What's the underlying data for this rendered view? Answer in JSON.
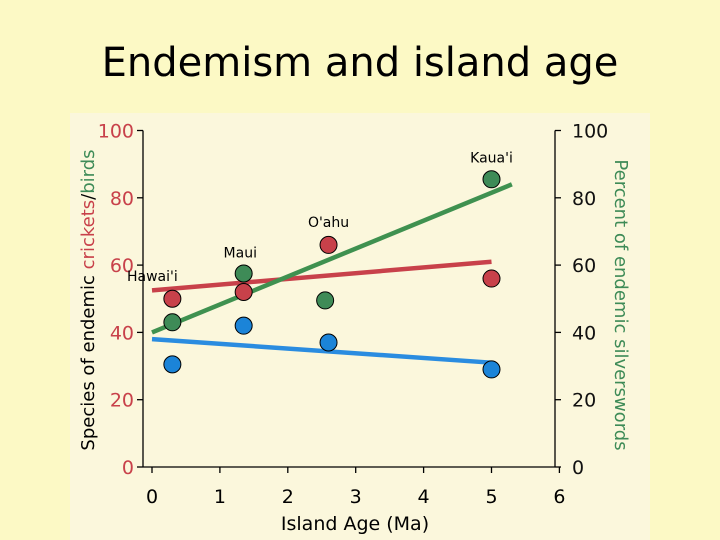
{
  "slide": {
    "title": "Endemism and island age"
  },
  "colors": {
    "background": "#fcf9c5",
    "plot_background": "#fbf7dc",
    "crickets": "#c8414a",
    "birds": "#3e8b57",
    "silverswords": "#1b84d8",
    "crickets_line": "#c8414a",
    "birds_line": "#3f9150",
    "silverswords_line": "#2a8ce0"
  },
  "chart_data": {
    "type": "scatter",
    "title": "",
    "xlabel": "Island Age (Ma)",
    "ylabel_left": {
      "part1": "Species of endemic ",
      "part2": "crickets",
      "part3": "/",
      "part4": "birds"
    },
    "ylabel_right": "Percent of endemic silverswords",
    "xlim": [
      0,
      6
    ],
    "ylim": [
      0,
      100
    ],
    "x_ticks": [
      "0",
      "1",
      "2",
      "3",
      "4",
      "5",
      "6"
    ],
    "y_ticks_left": [
      "0",
      "20",
      "40",
      "60",
      "80",
      "100"
    ],
    "y_ticks_right": [
      "0",
      "20",
      "40",
      "60",
      "80",
      "100"
    ],
    "islands": [
      {
        "name": "Hawai'i",
        "x": 0.3
      },
      {
        "name": "Maui",
        "x": 1.3
      },
      {
        "name": "O'ahu",
        "x": 2.6
      },
      {
        "name": "Kaua'i",
        "x": 5.0
      }
    ],
    "series": [
      {
        "key": "crickets",
        "x": [
          0.3,
          1.35,
          2.6,
          5.0
        ],
        "values": [
          50,
          52,
          66,
          56
        ],
        "trend": [
          [
            0,
            52.5
          ],
          [
            5.0,
            61
          ]
        ]
      },
      {
        "key": "birds",
        "x": [
          0.3,
          1.35,
          2.55,
          5.0
        ],
        "values": [
          43,
          57.5,
          49.5,
          85.5
        ],
        "trend": [
          [
            0,
            40
          ],
          [
            5.3,
            84
          ]
        ]
      },
      {
        "key": "silverswords",
        "x": [
          0.3,
          1.35,
          2.6,
          5.0
        ],
        "values": [
          30.5,
          42,
          37,
          29
        ],
        "trend": [
          [
            0,
            38
          ],
          [
            5.0,
            31
          ]
        ]
      }
    ],
    "grid": false,
    "legend": "none"
  }
}
